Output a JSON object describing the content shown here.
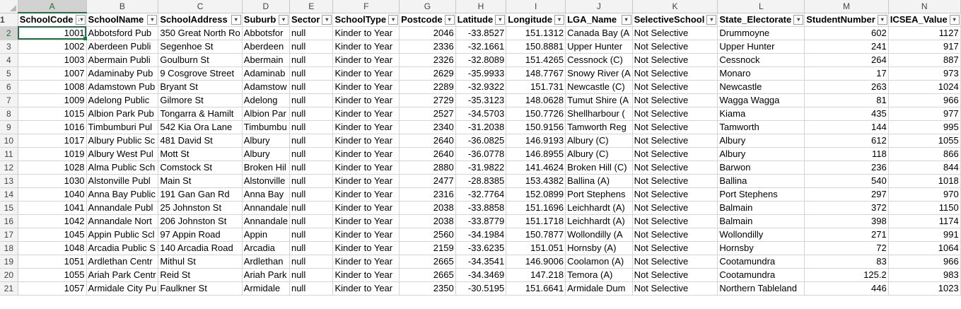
{
  "column_letters": [
    "A",
    "B",
    "C",
    "D",
    "E",
    "F",
    "G",
    "H",
    "I",
    "J",
    "K",
    "L",
    "M",
    "N"
  ],
  "headers": [
    "SchoolCode",
    "SchoolName",
    "SchoolAddress",
    "Suburb",
    "Sector",
    "SchoolType",
    "Postcode",
    "Latitude",
    "Longitude",
    "LGA_Name",
    "SelectiveSchool",
    "State_Electorate",
    "StudentNumber",
    "ICSEA_Value"
  ],
  "numeric_columns": [
    0,
    6,
    7,
    8,
    12,
    13
  ],
  "rows": [
    [
      "1001",
      "Abbotsford Pub",
      "350 Great North Ro",
      "Abbotsfor",
      "null",
      "Kinder to Year",
      "2046",
      "-33.8527",
      "151.1312",
      "Canada Bay (A",
      "Not Selective",
      "Drummoyne",
      "602",
      "1127"
    ],
    [
      "1002",
      "Aberdeen Publi",
      "Segenhoe St",
      "Aberdeen",
      "null",
      "Kinder to Year",
      "2336",
      "-32.1661",
      "150.8881",
      "Upper Hunter",
      "Not Selective",
      "Upper Hunter",
      "241",
      "917"
    ],
    [
      "1003",
      "Abermain Publi",
      "Goulburn St",
      "Abermain",
      "null",
      "Kinder to Year",
      "2326",
      "-32.8089",
      "151.4265",
      "Cessnock (C)",
      "Not Selective",
      "Cessnock",
      "264",
      "887"
    ],
    [
      "1007",
      "Adaminaby Pub",
      "9 Cosgrove Street",
      "Adaminab",
      "null",
      "Kinder to Year",
      "2629",
      "-35.9933",
      "148.7767",
      "Snowy River (A",
      "Not Selective",
      "Monaro",
      "17",
      "973"
    ],
    [
      "1008",
      "Adamstown Pub",
      "Bryant St",
      "Adamstow",
      "null",
      "Kinder to Year",
      "2289",
      "-32.9322",
      "151.731",
      "Newcastle (C)",
      "Not Selective",
      "Newcastle",
      "263",
      "1024"
    ],
    [
      "1009",
      "Adelong Public",
      "Gilmore St",
      "Adelong",
      "null",
      "Kinder to Year",
      "2729",
      "-35.3123",
      "148.0628",
      "Tumut Shire (A",
      "Not Selective",
      "Wagga Wagga",
      "81",
      "966"
    ],
    [
      "1015",
      "Albion Park Pub",
      "Tongarra & Hamilt",
      "Albion Par",
      "null",
      "Kinder to Year",
      "2527",
      "-34.5703",
      "150.7726",
      "Shellharbour (",
      "Not Selective",
      "Kiama",
      "435",
      "977"
    ],
    [
      "1016",
      "Timbumburi Pul",
      "542 Kia Ora Lane",
      "Timbumbu",
      "null",
      "Kinder to Year",
      "2340",
      "-31.2038",
      "150.9156",
      "Tamworth Reg",
      "Not Selective",
      "Tamworth",
      "144",
      "995"
    ],
    [
      "1017",
      "Albury Public Sc",
      "481 David St",
      "Albury",
      "null",
      "Kinder to Year",
      "2640",
      "-36.0825",
      "146.9193",
      "Albury (C)",
      "Not Selective",
      "Albury",
      "612",
      "1055"
    ],
    [
      "1019",
      "Albury West Pul",
      "Mott St",
      "Albury",
      "null",
      "Kinder to Year",
      "2640",
      "-36.0778",
      "146.8955",
      "Albury (C)",
      "Not Selective",
      "Albury",
      "118",
      "866"
    ],
    [
      "1028",
      "Alma Public Sch",
      "Comstock St",
      "Broken Hil",
      "null",
      "Kinder to Year",
      "2880",
      "-31.9822",
      "141.4624",
      "Broken Hill (C)",
      "Not Selective",
      "Barwon",
      "236",
      "844"
    ],
    [
      "1030",
      "Alstonville Publ",
      "Main St",
      "Alstonville",
      "null",
      "Kinder to Year",
      "2477",
      "-28.8385",
      "153.4382",
      "Ballina (A)",
      "Not Selective",
      "Ballina",
      "540",
      "1018"
    ],
    [
      "1040",
      "Anna Bay Public",
      "191 Gan Gan Rd",
      "Anna Bay",
      "null",
      "Kinder to Year",
      "2316",
      "-32.7764",
      "152.0899",
      "Port Stephens",
      "Not Selective",
      "Port Stephens",
      "297",
      "970"
    ],
    [
      "1041",
      "Annandale Publ",
      "25 Johnston St",
      "Annandale",
      "null",
      "Kinder to Year",
      "2038",
      "-33.8858",
      "151.1696",
      "Leichhardt (A)",
      "Not Selective",
      "Balmain",
      "372",
      "1150"
    ],
    [
      "1042",
      "Annandale Nort",
      "206 Johnston St",
      "Annandale",
      "null",
      "Kinder to Year",
      "2038",
      "-33.8779",
      "151.1718",
      "Leichhardt (A)",
      "Not Selective",
      "Balmain",
      "398",
      "1174"
    ],
    [
      "1045",
      "Appin Public Scl",
      "97 Appin Road",
      "Appin",
      "null",
      "Kinder to Year",
      "2560",
      "-34.1984",
      "150.7877",
      "Wollondilly (A",
      "Not Selective",
      "Wollondilly",
      "271",
      "991"
    ],
    [
      "1048",
      "Arcadia Public S",
      "140 Arcadia Road",
      "Arcadia",
      "null",
      "Kinder to Year",
      "2159",
      "-33.6235",
      "151.051",
      "Hornsby (A)",
      "Not Selective",
      "Hornsby",
      "72",
      "1064"
    ],
    [
      "1051",
      "Ardlethan Centr",
      "Mithul St",
      "Ardlethan",
      "null",
      "Kinder to Year",
      "2665",
      "-34.3541",
      "146.9006",
      "Coolamon (A)",
      "Not Selective",
      "Cootamundra",
      "83",
      "966"
    ],
    [
      "1055",
      "Ariah Park Centr",
      "Reid St",
      "Ariah Park",
      "null",
      "Kinder to Year",
      "2665",
      "-34.3469",
      "147.218",
      "Temora (A)",
      "Not Selective",
      "Cootamundra",
      "125.2",
      "983"
    ],
    [
      "1057",
      "Armidale City Pu",
      "Faulkner St",
      "Armidale",
      "null",
      "Kinder to Year",
      "2350",
      "-30.5195",
      "151.6641",
      "Armidale Dum",
      "Not Selective",
      "Northern Tableland",
      "446",
      "1023"
    ]
  ],
  "active_cell": "A2",
  "colors": {
    "accent": "#217346",
    "header_bg": "#f3f3f3",
    "grid": "#d4d4d4"
  }
}
